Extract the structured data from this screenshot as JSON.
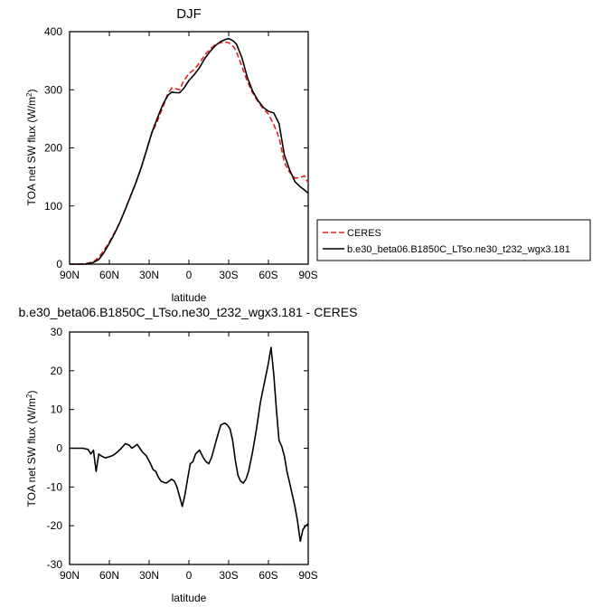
{
  "chart_data": [
    {
      "type": "line",
      "title": "DJF",
      "xlabel": "latitude",
      "ylabel": "TOA net SW flux (W/m",
      "ylabel_sup": "2",
      "ylabel_close": ")",
      "xlim": [
        90,
        -90
      ],
      "ylim": [
        0,
        400
      ],
      "xticks": [
        90,
        60,
        30,
        0,
        -30,
        -60,
        -90
      ],
      "xtick_labels": [
        "90N",
        "60N",
        "30N",
        "0",
        "30S",
        "60S",
        "90S"
      ],
      "yticks": [
        0,
        100,
        200,
        300,
        400
      ],
      "ytick_labels": [
        "0",
        "100",
        "200",
        "300",
        "400"
      ],
      "legend_position": "right",
      "series": [
        {
          "name": "CERES",
          "color": "#e8201e",
          "style": "dashed",
          "x": [
            90,
            84,
            78,
            72,
            68,
            64,
            60,
            56,
            52,
            48,
            44,
            40,
            36,
            32,
            28,
            24,
            20,
            16,
            13,
            10,
            7,
            4,
            0,
            -4,
            -8,
            -12,
            -16,
            -20,
            -24,
            -28,
            -30,
            -32,
            -34,
            -36,
            -40,
            -44,
            -48,
            -52,
            -56,
            -60,
            -64,
            -68,
            -72,
            -76,
            -80,
            -84,
            -87,
            -90
          ],
          "y": [
            0,
            0,
            1,
            4,
            12,
            24,
            38,
            55,
            72,
            95,
            118,
            140,
            166,
            195,
            225,
            245,
            268,
            292,
            303,
            302,
            300,
            315,
            328,
            335,
            346,
            360,
            370,
            378,
            381,
            382,
            381,
            378,
            373,
            365,
            340,
            315,
            295,
            280,
            268,
            258,
            240,
            218,
            175,
            158,
            148,
            149,
            152,
            140
          ]
        },
        {
          "name": "b.e30_beta06.B1850C_LTso.ne30_t232_wgx3.181",
          "color": "#000000",
          "style": "solid",
          "x": [
            90,
            84,
            78,
            72,
            68,
            64,
            60,
            56,
            52,
            48,
            44,
            40,
            36,
            32,
            28,
            24,
            20,
            16,
            13,
            10,
            7,
            4,
            0,
            -4,
            -8,
            -12,
            -16,
            -20,
            -24,
            -28,
            -30,
            -32,
            -34,
            -36,
            -40,
            -44,
            -48,
            -52,
            -56,
            -60,
            -64,
            -68,
            -72,
            -76,
            -80,
            -84,
            -87,
            -90
          ],
          "y": [
            0,
            0,
            0,
            3,
            8,
            20,
            36,
            53,
            72,
            94,
            117,
            140,
            166,
            196,
            226,
            250,
            273,
            290,
            296,
            295,
            295,
            302,
            316,
            326,
            338,
            354,
            366,
            376,
            383,
            387,
            388,
            386,
            383,
            378,
            355,
            322,
            298,
            282,
            270,
            263,
            260,
            242,
            188,
            162,
            142,
            133,
            128,
            122
          ]
        }
      ]
    },
    {
      "type": "line",
      "title": "b.e30_beta06.B1850C_LTso.ne30_t232_wgx3.181 - CERES",
      "xlabel": "latitude",
      "ylabel": "TOA net SW flux (W/m",
      "ylabel_sup": "2",
      "ylabel_close": ")",
      "xlim": [
        90,
        -90
      ],
      "ylim": [
        -30,
        30
      ],
      "xticks": [
        90,
        60,
        30,
        0,
        -30,
        -60,
        -90
      ],
      "xtick_labels": [
        "90N",
        "60N",
        "30N",
        "0",
        "30S",
        "60S",
        "90S"
      ],
      "yticks": [
        -30,
        -20,
        -10,
        0,
        10,
        20,
        30
      ],
      "ytick_labels": [
        "-30",
        "-20",
        "-10",
        "0",
        "10",
        "20",
        "30"
      ],
      "series": [
        {
          "color": "#000000",
          "style": "solid",
          "x": [
            90,
            85,
            80,
            76,
            74,
            72,
            70,
            68,
            66,
            63,
            60,
            57,
            54,
            51,
            48,
            45,
            43,
            41,
            39,
            37,
            35,
            32,
            29,
            27,
            25,
            23,
            21,
            19,
            17,
            15,
            13,
            11,
            9,
            7,
            5,
            3,
            1,
            -1,
            -3,
            -5,
            -8,
            -11,
            -13,
            -15,
            -17,
            -19,
            -21,
            -24,
            -27,
            -29,
            -31,
            -33,
            -35,
            -37,
            -39,
            -41,
            -43,
            -45,
            -48,
            -51,
            -54,
            -57,
            -60,
            -62,
            -64,
            -66,
            -68,
            -70,
            -72,
            -74,
            -76,
            -78,
            -80,
            -82,
            -84,
            -86,
            -88,
            -90
          ],
          "y": [
            0,
            0,
            0,
            -0.3,
            -1.5,
            -0.5,
            -6,
            -1.5,
            -2,
            -2.5,
            -2.2,
            -1.8,
            -1,
            0,
            1.2,
            0.8,
            0,
            0.5,
            1,
            0,
            -1,
            -2,
            -4,
            -5.5,
            -6,
            -7.5,
            -8.5,
            -8.8,
            -9,
            -8.5,
            -8,
            -8.5,
            -10,
            -12.5,
            -15,
            -12,
            -8,
            -4,
            -3.5,
            -1.5,
            -0.5,
            -2.5,
            -3.5,
            -4,
            -2.5,
            0,
            2.5,
            6,
            6.5,
            6,
            5,
            2,
            -3,
            -7,
            -8.5,
            -9,
            -8,
            -6,
            -1,
            5,
            12,
            17,
            22,
            26,
            19,
            10,
            2,
            0.5,
            -2,
            -6,
            -9,
            -12,
            -15,
            -19,
            -24,
            -21,
            -20,
            -19.5
          ]
        }
      ]
    }
  ]
}
